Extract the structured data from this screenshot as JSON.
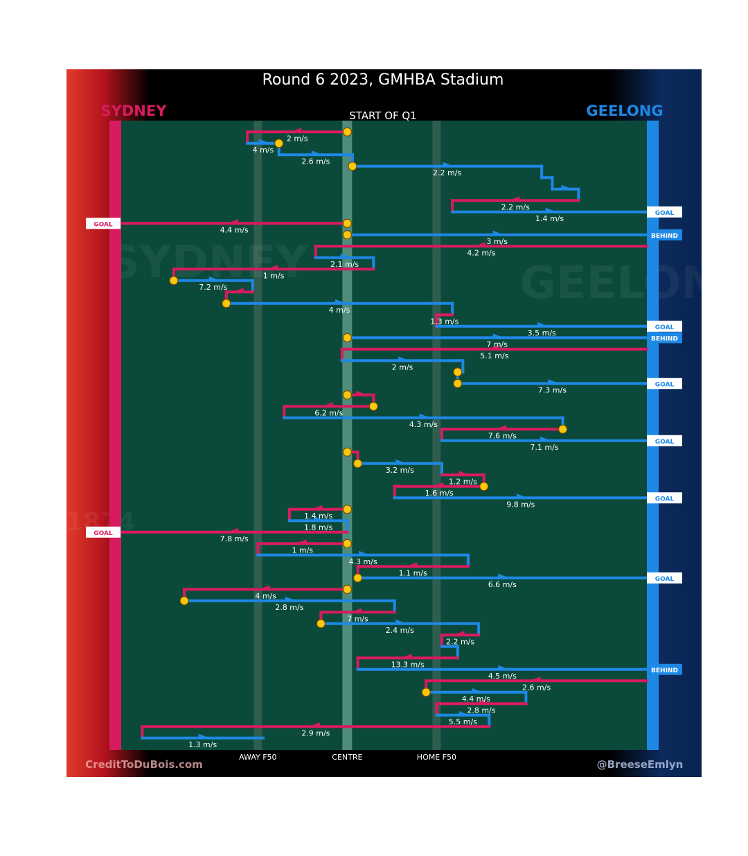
{
  "title": "Round 6 2023, GMHBA Stadium",
  "subtitle": "START OF Q1",
  "teams": {
    "left": {
      "name": "SYDNEY",
      "color": "#d81b60"
    },
    "right": {
      "name": "GEELONG",
      "color": "#1e88e5"
    }
  },
  "watermarks": {
    "left": "SYDNEY",
    "right": "GEELONG",
    "year": "1874"
  },
  "colors": {
    "field": "#0b4a3b",
    "centre_band": "#4f8c7c",
    "f50_band": "#2f5d4e",
    "ball_dot": "#f9c80e"
  },
  "axis_labels": [
    "AWAY F50",
    "CENTRE",
    "HOME F50"
  ],
  "credits": {
    "left": "CreditToDuBois.com",
    "right": "@BreeseEmlyn"
  },
  "chart_data": {
    "type": "ball-movement chain",
    "title": "Round 6 2023, GMHBA Stadium",
    "subtitle": "START OF Q1",
    "x_axis": {
      "unit": "field position (0 = Sydney goal, 100 = Geelong goal)",
      "range": [
        0,
        100
      ],
      "ticks": {
        "AWAY F50": 26,
        "CENTRE": 43,
        "HOME F50": 60
      }
    },
    "rows": 55,
    "chains": [
      {
        "team": "SYD",
        "from": 43,
        "to": 24,
        "speed": "2 m/s",
        "row": 0.5,
        "dot": "start"
      },
      {
        "team": "GEE",
        "from": 24,
        "to": 30,
        "speed": "4 m/s",
        "row": 1.5,
        "dot": "end"
      },
      {
        "team": "GEE",
        "from": 30,
        "to": 44,
        "speed": "2.6 m/s",
        "row": 2.5
      },
      {
        "team": "GEE",
        "from": 44,
        "to": 80,
        "speed": "2.2 m/s",
        "row": 3.5,
        "dot": "start"
      },
      {
        "team": "GEE",
        "from": 80,
        "to": 82,
        "speed": "",
        "row": 4.5
      },
      {
        "team": "GEE",
        "from": 82,
        "to": 87,
        "speed": "",
        "row": 5.5
      },
      {
        "team": "SYD",
        "from": 87,
        "to": 63,
        "speed": "2.2 m/s",
        "row": 6.5
      },
      {
        "team": "GEE",
        "from": 63,
        "to": 100,
        "speed": "1.4 m/s",
        "row": 7.5,
        "result": "GOAL"
      },
      {
        "team": "SYD",
        "from": 43,
        "to": 0,
        "speed": "4.4 m/s",
        "row": 8.5,
        "dot": "start",
        "result": "GOAL"
      },
      {
        "team": "GEE",
        "from": 43,
        "to": 100,
        "speed": "3 m/s",
        "row": 9.5,
        "dot": "start",
        "result": "BEHIND"
      },
      {
        "team": "SYD",
        "from": 100,
        "to": 37,
        "speed": "4.2 m/s",
        "row": 10.5
      },
      {
        "team": "GEE",
        "from": 37,
        "to": 48,
        "speed": "2.1 m/s",
        "row": 11.5
      },
      {
        "team": "SYD",
        "from": 48,
        "to": 10,
        "speed": "1 m/s",
        "row": 12.5
      },
      {
        "team": "GEE",
        "from": 10,
        "to": 25,
        "speed": "7.2 m/s",
        "row": 13.5,
        "dot": "start"
      },
      {
        "team": "SYD",
        "from": 25,
        "to": 20,
        "speed": "",
        "row": 14.5
      },
      {
        "team": "GEE",
        "from": 20,
        "to": 63,
        "speed": "4 m/s",
        "row": 15.5,
        "dot": "start"
      },
      {
        "team": "SYD",
        "from": 63,
        "to": 60,
        "speed": "1.3 m/s",
        "row": 16.5
      },
      {
        "team": "GEE",
        "from": 60,
        "to": 100,
        "speed": "3.5 m/s",
        "row": 17.5,
        "result": "GOAL"
      },
      {
        "team": "GEE",
        "from": 43,
        "to": 100,
        "speed": "7 m/s",
        "row": 18.5,
        "dot": "start",
        "result": "BEHIND"
      },
      {
        "team": "SYD",
        "from": 100,
        "to": 42,
        "speed": "5.1 m/s",
        "row": 19.5
      },
      {
        "team": "GEE",
        "from": 42,
        "to": 65,
        "speed": "2 m/s",
        "row": 20.5
      },
      {
        "team": "GEE",
        "from": 65,
        "to": 64,
        "speed": "",
        "row": 21.5,
        "dot": "end"
      },
      {
        "team": "GEE",
        "from": 64,
        "to": 100,
        "speed": "7.3 m/s",
        "row": 22.5,
        "dot": "start",
        "result": "GOAL"
      },
      {
        "team": "SYD",
        "from": 43,
        "to": 48,
        "speed": "",
        "row": 23.5,
        "dot": "start"
      },
      {
        "team": "SYD",
        "from": 48,
        "to": 31,
        "speed": "6.2 m/s",
        "row": 24.5,
        "dot": "start"
      },
      {
        "team": "GEE",
        "from": 31,
        "to": 84,
        "speed": "4.3 m/s",
        "row": 25.5
      },
      {
        "team": "SYD",
        "from": 84,
        "to": 61,
        "speed": "7.6 m/s",
        "row": 26.5,
        "dot": "start"
      },
      {
        "team": "GEE",
        "from": 61,
        "to": 100,
        "speed": "7.1 m/s",
        "row": 27.5,
        "result": "GOAL"
      },
      {
        "team": "SYD",
        "from": 43,
        "to": 45,
        "speed": "",
        "row": 28.5,
        "dot": "start"
      },
      {
        "team": "GEE",
        "from": 45,
        "to": 61,
        "speed": "3.2 m/s",
        "row": 29.5,
        "dot": "start"
      },
      {
        "team": "SYD",
        "from": 61,
        "to": 69,
        "speed": "1.2 m/s",
        "row": 30.5
      },
      {
        "team": "SYD",
        "from": 69,
        "to": 52,
        "speed": "1.6 m/s",
        "row": 31.5,
        "dot": "start"
      },
      {
        "team": "GEE",
        "from": 52,
        "to": 100,
        "speed": "9.8 m/s",
        "row": 32.5,
        "result": "GOAL"
      },
      {
        "team": "SYD",
        "from": 43,
        "to": 32,
        "speed": "1.4 m/s",
        "row": 33.5,
        "dot": "start"
      },
      {
        "team": "GEE",
        "from": 32,
        "to": 43,
        "speed": "1.8 m/s",
        "row": 34.5
      },
      {
        "team": "SYD",
        "from": 43,
        "to": 0,
        "speed": "7.8 m/s",
        "row": 35.5,
        "result": "GOAL"
      },
      {
        "team": "SYD",
        "from": 43,
        "to": 26,
        "speed": "1 m/s",
        "row": 36.5,
        "dot": "start"
      },
      {
        "team": "GEE",
        "from": 26,
        "to": 66,
        "speed": "4.3 m/s",
        "row": 37.5
      },
      {
        "team": "SYD",
        "from": 66,
        "to": 45,
        "speed": "1.1 m/s",
        "row": 38.5
      },
      {
        "team": "GEE",
        "from": 45,
        "to": 100,
        "speed": "6.6 m/s",
        "row": 39.5,
        "dot": "start",
        "result": "GOAL"
      },
      {
        "team": "SYD",
        "from": 43,
        "to": 12,
        "speed": "4 m/s",
        "row": 40.5,
        "dot": "start"
      },
      {
        "team": "GEE",
        "from": 12,
        "to": 52,
        "speed": "2.8 m/s",
        "row": 41.5,
        "dot": "start"
      },
      {
        "team": "SYD",
        "from": 52,
        "to": 38,
        "speed": "7 m/s",
        "row": 42.5
      },
      {
        "team": "GEE",
        "from": 38,
        "to": 68,
        "speed": "2.4 m/s",
        "row": 43.5,
        "dot": "start"
      },
      {
        "team": "SYD",
        "from": 68,
        "to": 61,
        "speed": "2.2 m/s",
        "row": 44.5
      },
      {
        "team": "GEE",
        "from": 61,
        "to": 64,
        "speed": "",
        "row": 45.5
      },
      {
        "team": "SYD",
        "from": 64,
        "to": 45,
        "speed": "13.3 m/s",
        "row": 46.5
      },
      {
        "team": "GEE",
        "from": 45,
        "to": 100,
        "speed": "4.5 m/s",
        "row": 47.5,
        "result": "BEHIND"
      },
      {
        "team": "SYD",
        "from": 100,
        "to": 58,
        "speed": "2.6 m/s",
        "row": 48.5
      },
      {
        "team": "GEE",
        "from": 58,
        "to": 77,
        "speed": "4.4 m/s",
        "row": 49.5,
        "dot": "start"
      },
      {
        "team": "SYD",
        "from": 77,
        "to": 60,
        "speed": "2.8 m/s",
        "row": 50.5
      },
      {
        "team": "GEE",
        "from": 60,
        "to": 70,
        "speed": "5.5 m/s",
        "row": 51.5
      },
      {
        "team": "SYD",
        "from": 70,
        "to": 4,
        "speed": "2.9 m/s",
        "row": 52.5
      },
      {
        "team": "GEE",
        "from": 4,
        "to": 27,
        "speed": "1.3 m/s",
        "row": 53.5
      }
    ]
  }
}
